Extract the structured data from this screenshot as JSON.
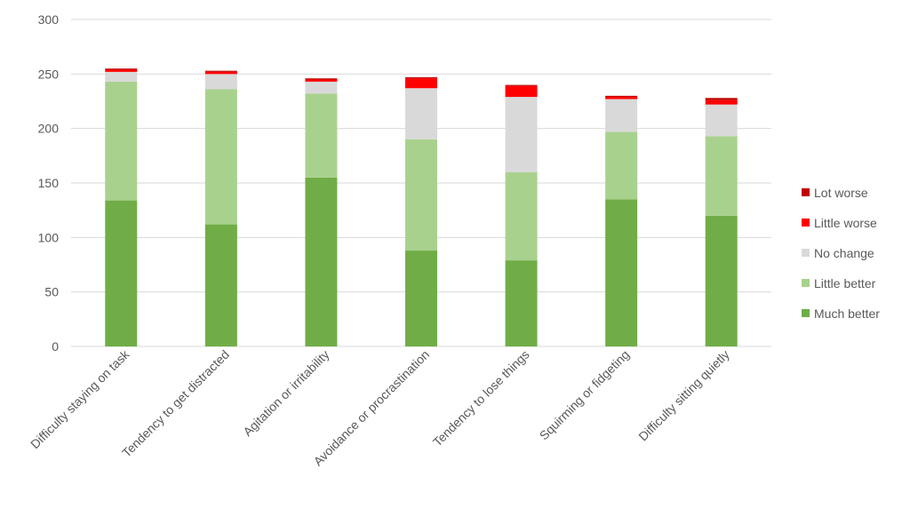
{
  "chart_data": {
    "type": "bar",
    "stacked": true,
    "title": "",
    "xlabel": "",
    "ylabel": "",
    "ylim": [
      0,
      300
    ],
    "yticks": [
      0,
      50,
      100,
      150,
      200,
      250,
      300
    ],
    "grid": true,
    "legend_position": "right",
    "categories": [
      "Difficulty staying on task",
      "Tendency to get distracted",
      "Agitation or irritability",
      "Avoidance or procrastination",
      "Tendency to lose things",
      "Squirming or fidgeting",
      "Difficulty sitting quietly"
    ],
    "series": [
      {
        "name": "Much better",
        "color": "#70AD47",
        "values": [
          134,
          112,
          155,
          88,
          79,
          135,
          120
        ]
      },
      {
        "name": "Little better",
        "color": "#A9D18E",
        "values": [
          109,
          124,
          77,
          102,
          81,
          62,
          73
        ]
      },
      {
        "name": "No change",
        "color": "#D9D9D9",
        "values": [
          9,
          14,
          11,
          47,
          69,
          30,
          29
        ]
      },
      {
        "name": "Little worse",
        "color": "#FF0000",
        "values": [
          2,
          2,
          2,
          9,
          10,
          2,
          4
        ]
      },
      {
        "name": "Lot worse",
        "color": "#C00000",
        "values": [
          1,
          1,
          1,
          1,
          1,
          1,
          2
        ]
      }
    ]
  }
}
